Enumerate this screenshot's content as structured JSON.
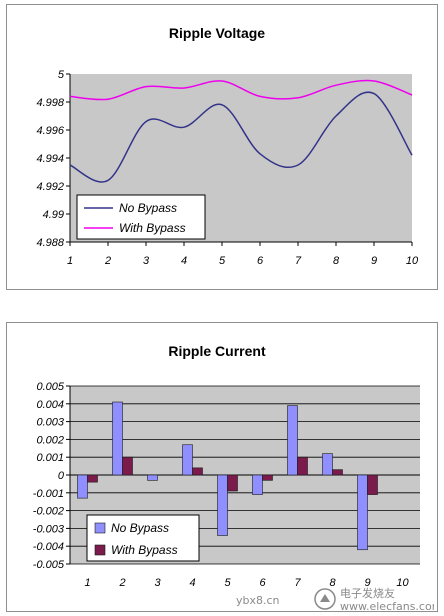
{
  "chart_data": [
    {
      "type": "line",
      "title": "Ripple Voltage",
      "x": [
        1,
        2,
        3,
        4,
        5,
        6,
        7,
        8,
        9,
        10
      ],
      "ylim": [
        4.988,
        5
      ],
      "yticks": [
        "4.988",
        "4.99",
        "4.992",
        "4.994",
        "4.996",
        "4.998",
        "5"
      ],
      "grid": true,
      "legend_position": "bottom-left",
      "series": [
        {
          "name": "No Bypass",
          "color": "#33338a",
          "values": [
            4.9935,
            4.9924,
            4.9966,
            4.9962,
            4.9978,
            4.9943,
            4.9935,
            4.997,
            4.9986,
            4.9942
          ]
        },
        {
          "name": "With Bypass",
          "color": "#ee00ee",
          "values": [
            4.9984,
            4.9982,
            4.9991,
            4.999,
            4.9995,
            4.9984,
            4.9983,
            4.9992,
            4.9995,
            4.9985
          ]
        }
      ]
    },
    {
      "type": "bar",
      "title": "Ripple Current",
      "categories": [
        "1",
        "2",
        "3",
        "4",
        "5",
        "6",
        "7",
        "8",
        "9",
        "10"
      ],
      "ylim": [
        -0.005,
        0.005
      ],
      "yticks": [
        "-0.005",
        "-0.004",
        "-0.003",
        "-0.002",
        "-0.001",
        "0",
        "0.001",
        "0.002",
        "0.003",
        "0.004",
        "0.005"
      ],
      "grid": true,
      "legend_position": "bottom-right",
      "series": [
        {
          "name": "No Bypass",
          "color": "#8f8fff",
          "values": [
            -0.0013,
            0.0041,
            -0.0003,
            0.0017,
            -0.0034,
            -0.0011,
            0.0039,
            0.0012,
            -0.0042,
            0.0
          ]
        },
        {
          "name": "With Bypass",
          "color": "#7a1b4b",
          "values": [
            -0.0004,
            0.001,
            0.0,
            0.0004,
            -0.0009,
            -0.0003,
            0.001,
            0.0003,
            -0.0011,
            0.0
          ]
        }
      ]
    }
  ],
  "watermark": {
    "brand_text": "电子发烧友",
    "url_left": "ybx8.cn",
    "url_right": "www.elecfans.com"
  }
}
